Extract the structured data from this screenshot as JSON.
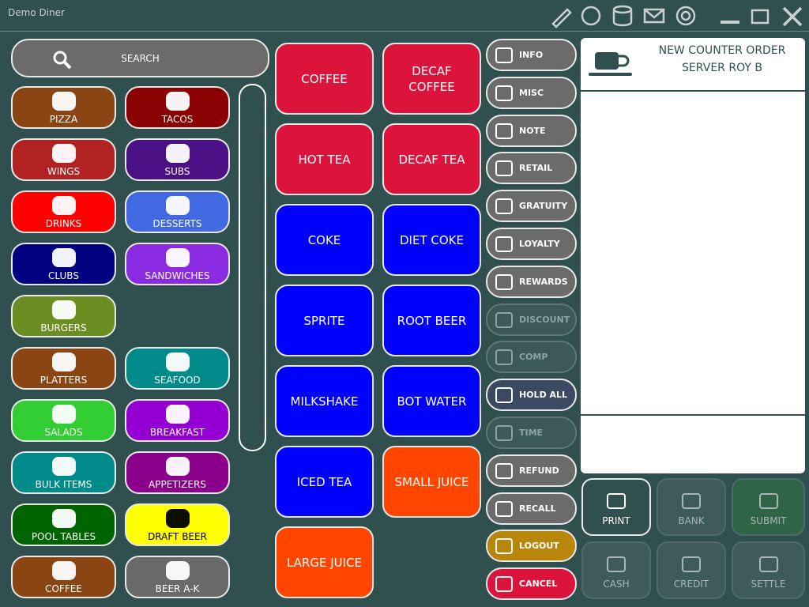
{
  "title": "Demo Diner",
  "search": "SEARCH",
  "categories": [
    {
      "label": "PIZZA",
      "color": "#8b4513"
    },
    {
      "label": "TACOS",
      "color": "#8b0000"
    },
    {
      "label": "WINGS",
      "color": "#b22222"
    },
    {
      "label": "SUBS",
      "color": "#4b0f86"
    },
    {
      "label": "DRINKS",
      "color": "#ff0000"
    },
    {
      "label": "DESSERTS",
      "color": "#4169e1"
    },
    {
      "label": "CLUBS",
      "color": "#000080"
    },
    {
      "label": "SANDWICHES",
      "color": "#8a2be2"
    },
    {
      "label": "BURGERS",
      "color": "#6b8e23"
    },
    {
      "label": "PLATTERS",
      "color": "#8b4513"
    },
    {
      "label": "SEAFOOD",
      "color": "#008b8b"
    },
    {
      "label": "SALADS",
      "color": "#32cd32"
    },
    {
      "label": "BREAKFAST",
      "color": "#9400d3"
    },
    {
      "label": "BULK ITEMS",
      "color": "#008b8b"
    },
    {
      "label": "APPETIZERS",
      "color": "#8b008b"
    },
    {
      "label": "POOL TABLES",
      "color": "#006400"
    },
    {
      "label": "DRAFT BEER",
      "color": "#ffff00",
      "text_color": "#000000"
    },
    {
      "label": "COFFEE",
      "color": "#8b4513"
    },
    {
      "label": "BEER A-K",
      "color": "#696969"
    }
  ],
  "items": [
    {
      "label": "COFFEE",
      "color": "#dc143c"
    },
    {
      "label": "DECAF COFFEE",
      "color": "#dc143c"
    },
    {
      "label": "HOT TEA",
      "color": "#dc143c"
    },
    {
      "label": "DECAF TEA",
      "color": "#dc143c"
    },
    {
      "label": "COKE",
      "color": "#0000ff"
    },
    {
      "label": "DIET COKE",
      "color": "#0000ff"
    },
    {
      "label": "SPRITE",
      "color": "#0000ff"
    },
    {
      "label": "ROOT BEER",
      "color": "#0000ff"
    },
    {
      "label": "MILKSHAKE",
      "color": "#0000ff"
    },
    {
      "label": "BOT WATER",
      "color": "#0000ff"
    },
    {
      "label": "ICED TEA",
      "color": "#0000ff"
    },
    {
      "label": "SMALL JUICE",
      "color": "#ff4500"
    },
    {
      "label": "LARGE JUICE",
      "color": "#ff4500"
    }
  ],
  "functions": [
    {
      "label": "INFO",
      "color": "#6b6b6b"
    },
    {
      "label": "MISC",
      "color": "#6b6b6b"
    },
    {
      "label": "NOTE",
      "color": "#6b6b6b"
    },
    {
      "label": "RETAIL",
      "color": "#6b6b6b"
    },
    {
      "label": "GRATUITY",
      "color": "#6b6b6b"
    },
    {
      "label": "LOYALTY",
      "color": "#6b6b6b"
    },
    {
      "label": "REWARDS",
      "color": "#6b6b6b"
    },
    {
      "label": "DISCOUNT",
      "color": "#3c5858",
      "enabled": false
    },
    {
      "label": "COMP",
      "color": "#3c5858",
      "enabled": false
    },
    {
      "label": "HOLD ALL",
      "color": "#3b4a62"
    },
    {
      "label": "TIME",
      "color": "#3c5858",
      "enabled": false
    },
    {
      "label": "REFUND",
      "color": "#6b6b6b"
    },
    {
      "label": "RECALL",
      "color": "#6b6b6b"
    },
    {
      "label": "LOGOUT",
      "color": "#b8860b"
    },
    {
      "label": "CANCEL",
      "color": "#dc143c"
    }
  ],
  "order": {
    "title": "NEW COUNTER ORDER",
    "server": "SERVER ROY B"
  },
  "actions": [
    {
      "label": "PRINT",
      "color": "#304f4f",
      "enabled": true
    },
    {
      "label": "BANK",
      "color": "#3f5a5a",
      "enabled": false
    },
    {
      "label": "SUBMIT",
      "color": "#2f6446",
      "enabled": false
    },
    {
      "label": "CASH",
      "color": "#3f5a5a",
      "enabled": false
    },
    {
      "label": "CREDIT",
      "color": "#3f5a5a",
      "enabled": false
    },
    {
      "label": "SETTLE",
      "color": "#3f5a5a",
      "enabled": false
    }
  ]
}
